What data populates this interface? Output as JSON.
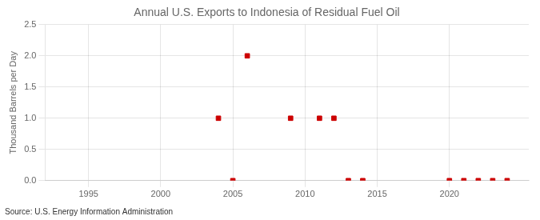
{
  "chart_data": {
    "type": "scatter",
    "title": "Annual U.S. Exports to Indonesia of Residual Fuel Oil",
    "ylabel": "Thousand Barrels per Day",
    "source": "Source: U.S. Energy Information Administration",
    "x": [
      2004,
      2005,
      2006,
      2009,
      2011,
      2012,
      2013,
      2014,
      2020,
      2021,
      2022,
      2023,
      2024
    ],
    "values": [
      1.0,
      0.0,
      2.0,
      1.0,
      1.0,
      1.0,
      0.0,
      0.0,
      0.0,
      0.0,
      0.0,
      0.0,
      0.0
    ],
    "color": "#cc0000",
    "marker": "square",
    "xlim": [
      1992,
      2025.5
    ],
    "xticks": [
      1995,
      2000,
      2005,
      2010,
      2015,
      2020
    ],
    "ylim": [
      0,
      2.5
    ],
    "yticks": [
      {
        "value": 0.0,
        "label": "0.0"
      },
      0.5,
      {
        "value": 1.0,
        "label": "1.0"
      },
      1.5,
      {
        "value": 2.0,
        "label": "2.0"
      },
      2.5
    ],
    "grid": true
  }
}
